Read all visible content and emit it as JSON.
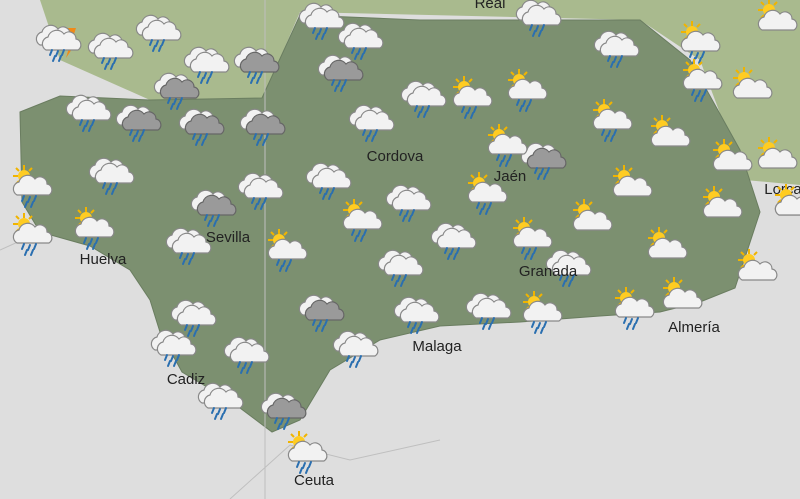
{
  "map": {
    "labels": [
      "Real",
      "Cordova",
      "Jaén",
      "Sevilla",
      "Huelva",
      "Granada",
      "Malaga",
      "Almería",
      "Cadiz",
      "Ceuta",
      "Lorca"
    ]
  }
}
